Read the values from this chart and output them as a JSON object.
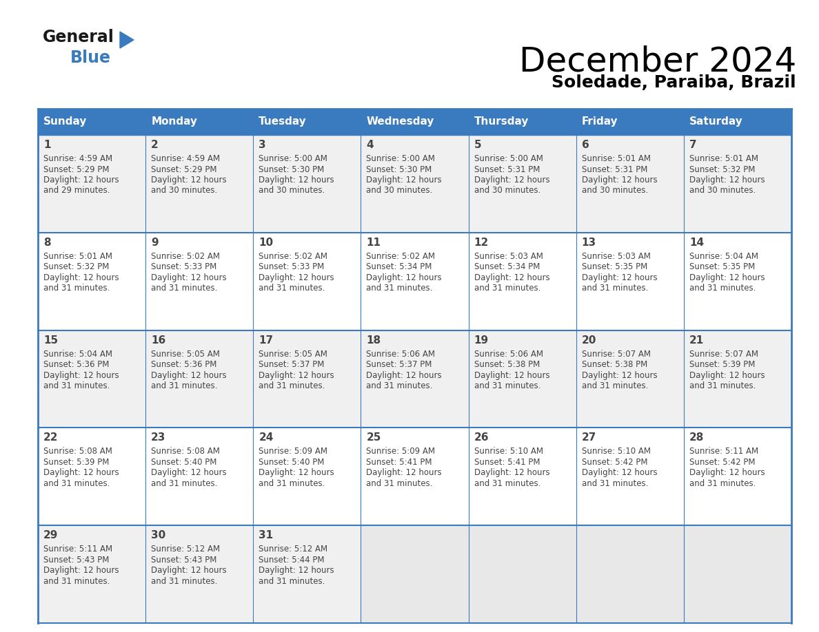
{
  "title": "December 2024",
  "subtitle": "Soledade, Paraiba, Brazil",
  "header_bg_color": "#3a7abf",
  "header_text_color": "#ffffff",
  "row_colors": [
    "#f0f0f0",
    "#ffffff"
  ],
  "last_row_empty_color": "#e8e8e8",
  "border_color": "#3a7abf",
  "text_color": "#444444",
  "days_of_week": [
    "Sunday",
    "Monday",
    "Tuesday",
    "Wednesday",
    "Thursday",
    "Friday",
    "Saturday"
  ],
  "calendar": [
    [
      {
        "day": 1,
        "sunrise": "4:59 AM",
        "sunset": "5:29 PM",
        "daylight": "12 hours and 29 minutes."
      },
      {
        "day": 2,
        "sunrise": "4:59 AM",
        "sunset": "5:29 PM",
        "daylight": "12 hours and 30 minutes."
      },
      {
        "day": 3,
        "sunrise": "5:00 AM",
        "sunset": "5:30 PM",
        "daylight": "12 hours and 30 minutes."
      },
      {
        "day": 4,
        "sunrise": "5:00 AM",
        "sunset": "5:30 PM",
        "daylight": "12 hours and 30 minutes."
      },
      {
        "day": 5,
        "sunrise": "5:00 AM",
        "sunset": "5:31 PM",
        "daylight": "12 hours and 30 minutes."
      },
      {
        "day": 6,
        "sunrise": "5:01 AM",
        "sunset": "5:31 PM",
        "daylight": "12 hours and 30 minutes."
      },
      {
        "day": 7,
        "sunrise": "5:01 AM",
        "sunset": "5:32 PM",
        "daylight": "12 hours and 30 minutes."
      }
    ],
    [
      {
        "day": 8,
        "sunrise": "5:01 AM",
        "sunset": "5:32 PM",
        "daylight": "12 hours and 31 minutes."
      },
      {
        "day": 9,
        "sunrise": "5:02 AM",
        "sunset": "5:33 PM",
        "daylight": "12 hours and 31 minutes."
      },
      {
        "day": 10,
        "sunrise": "5:02 AM",
        "sunset": "5:33 PM",
        "daylight": "12 hours and 31 minutes."
      },
      {
        "day": 11,
        "sunrise": "5:02 AM",
        "sunset": "5:34 PM",
        "daylight": "12 hours and 31 minutes."
      },
      {
        "day": 12,
        "sunrise": "5:03 AM",
        "sunset": "5:34 PM",
        "daylight": "12 hours and 31 minutes."
      },
      {
        "day": 13,
        "sunrise": "5:03 AM",
        "sunset": "5:35 PM",
        "daylight": "12 hours and 31 minutes."
      },
      {
        "day": 14,
        "sunrise": "5:04 AM",
        "sunset": "5:35 PM",
        "daylight": "12 hours and 31 minutes."
      }
    ],
    [
      {
        "day": 15,
        "sunrise": "5:04 AM",
        "sunset": "5:36 PM",
        "daylight": "12 hours and 31 minutes."
      },
      {
        "day": 16,
        "sunrise": "5:05 AM",
        "sunset": "5:36 PM",
        "daylight": "12 hours and 31 minutes."
      },
      {
        "day": 17,
        "sunrise": "5:05 AM",
        "sunset": "5:37 PM",
        "daylight": "12 hours and 31 minutes."
      },
      {
        "day": 18,
        "sunrise": "5:06 AM",
        "sunset": "5:37 PM",
        "daylight": "12 hours and 31 minutes."
      },
      {
        "day": 19,
        "sunrise": "5:06 AM",
        "sunset": "5:38 PM",
        "daylight": "12 hours and 31 minutes."
      },
      {
        "day": 20,
        "sunrise": "5:07 AM",
        "sunset": "5:38 PM",
        "daylight": "12 hours and 31 minutes."
      },
      {
        "day": 21,
        "sunrise": "5:07 AM",
        "sunset": "5:39 PM",
        "daylight": "12 hours and 31 minutes."
      }
    ],
    [
      {
        "day": 22,
        "sunrise": "5:08 AM",
        "sunset": "5:39 PM",
        "daylight": "12 hours and 31 minutes."
      },
      {
        "day": 23,
        "sunrise": "5:08 AM",
        "sunset": "5:40 PM",
        "daylight": "12 hours and 31 minutes."
      },
      {
        "day": 24,
        "sunrise": "5:09 AM",
        "sunset": "5:40 PM",
        "daylight": "12 hours and 31 minutes."
      },
      {
        "day": 25,
        "sunrise": "5:09 AM",
        "sunset": "5:41 PM",
        "daylight": "12 hours and 31 minutes."
      },
      {
        "day": 26,
        "sunrise": "5:10 AM",
        "sunset": "5:41 PM",
        "daylight": "12 hours and 31 minutes."
      },
      {
        "day": 27,
        "sunrise": "5:10 AM",
        "sunset": "5:42 PM",
        "daylight": "12 hours and 31 minutes."
      },
      {
        "day": 28,
        "sunrise": "5:11 AM",
        "sunset": "5:42 PM",
        "daylight": "12 hours and 31 minutes."
      }
    ],
    [
      {
        "day": 29,
        "sunrise": "5:11 AM",
        "sunset": "5:43 PM",
        "daylight": "12 hours and 31 minutes."
      },
      {
        "day": 30,
        "sunrise": "5:12 AM",
        "sunset": "5:43 PM",
        "daylight": "12 hours and 31 minutes."
      },
      {
        "day": 31,
        "sunrise": "5:12 AM",
        "sunset": "5:44 PM",
        "daylight": "12 hours and 31 minutes."
      },
      null,
      null,
      null,
      null
    ]
  ],
  "logo_general_color": "#1a1a1a",
  "logo_blue_color": "#3a7abf",
  "logo_triangle_color": "#3a7abf",
  "title_fontsize": 36,
  "subtitle_fontsize": 18,
  "header_fontsize": 11,
  "day_num_fontsize": 11,
  "cell_text_fontsize": 8.5
}
